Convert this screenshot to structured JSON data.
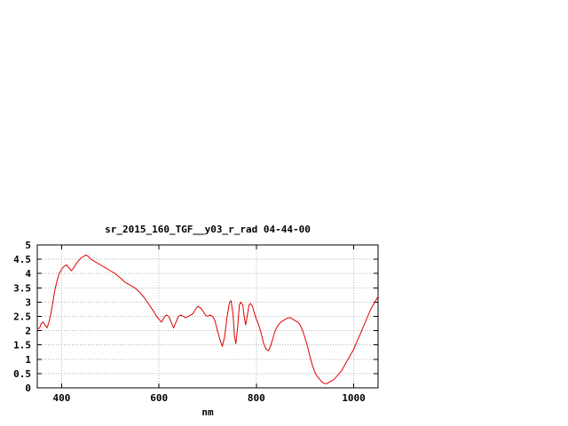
{
  "chart_data": {
    "type": "line",
    "title": "sr_2015_160_TGF__y03_r_rad 04-44-00",
    "xlabel": "nm",
    "ylabel": "",
    "xlim": [
      350,
      1050
    ],
    "ylim": [
      0,
      5
    ],
    "xticks": [
      400,
      600,
      800,
      1000
    ],
    "yticks": [
      0,
      0.5,
      1,
      1.5,
      2,
      2.5,
      3,
      3.5,
      4,
      4.5,
      5
    ],
    "grid": true,
    "legend": "none",
    "line_color": "#dd0000",
    "series": [
      {
        "name": "sr_2015_160_TGF__y03_r_rad",
        "x": [
          350,
          355,
          358,
          362,
          366,
          370,
          374,
          378,
          382,
          386,
          390,
          395,
          400,
          405,
          410,
          415,
          420,
          425,
          430,
          435,
          440,
          445,
          450,
          455,
          460,
          465,
          470,
          475,
          480,
          490,
          500,
          510,
          520,
          530,
          540,
          550,
          560,
          570,
          580,
          590,
          595,
          600,
          605,
          610,
          615,
          620,
          625,
          630,
          635,
          640,
          645,
          650,
          655,
          660,
          665,
          670,
          675,
          680,
          685,
          690,
          695,
          700,
          705,
          710,
          715,
          720,
          725,
          730,
          735,
          740,
          745,
          748,
          752,
          755,
          758,
          762,
          765,
          768,
          772,
          775,
          778,
          782,
          785,
          788,
          792,
          796,
          800,
          805,
          810,
          815,
          820,
          825,
          830,
          835,
          840,
          845,
          850,
          855,
          860,
          865,
          870,
          875,
          880,
          885,
          890,
          895,
          900,
          905,
          910,
          915,
          920,
          925,
          930,
          935,
          940,
          945,
          950,
          955,
          960,
          965,
          970,
          975,
          980,
          985,
          990,
          995,
          1000,
          1005,
          1010,
          1015,
          1020,
          1025,
          1030,
          1035,
          1040,
          1045,
          1050
        ],
        "y": [
          2.05,
          2.1,
          2.25,
          2.3,
          2.2,
          2.1,
          2.3,
          2.6,
          3.0,
          3.4,
          3.7,
          4.0,
          4.15,
          4.25,
          4.3,
          4.2,
          4.1,
          4.2,
          4.35,
          4.45,
          4.55,
          4.6,
          4.65,
          4.6,
          4.5,
          4.45,
          4.4,
          4.35,
          4.3,
          4.2,
          4.1,
          4.0,
          3.85,
          3.7,
          3.6,
          3.5,
          3.35,
          3.15,
          2.9,
          2.65,
          2.5,
          2.4,
          2.3,
          2.45,
          2.55,
          2.5,
          2.3,
          2.1,
          2.3,
          2.5,
          2.55,
          2.5,
          2.45,
          2.5,
          2.55,
          2.6,
          2.75,
          2.85,
          2.8,
          2.7,
          2.55,
          2.5,
          2.55,
          2.5,
          2.35,
          2.0,
          1.7,
          1.45,
          1.8,
          2.5,
          3.0,
          3.05,
          2.6,
          1.8,
          1.55,
          2.2,
          2.9,
          3.0,
          2.9,
          2.5,
          2.2,
          2.6,
          2.9,
          2.95,
          2.85,
          2.6,
          2.4,
          2.2,
          1.9,
          1.55,
          1.35,
          1.3,
          1.5,
          1.8,
          2.05,
          2.2,
          2.3,
          2.35,
          2.4,
          2.45,
          2.45,
          2.4,
          2.35,
          2.3,
          2.2,
          2.0,
          1.75,
          1.45,
          1.1,
          0.8,
          0.55,
          0.4,
          0.3,
          0.2,
          0.15,
          0.15,
          0.2,
          0.25,
          0.3,
          0.4,
          0.5,
          0.6,
          0.75,
          0.9,
          1.05,
          1.2,
          1.35,
          1.55,
          1.75,
          1.95,
          2.15,
          2.35,
          2.55,
          2.75,
          2.9,
          3.05,
          3.2
        ]
      }
    ]
  }
}
